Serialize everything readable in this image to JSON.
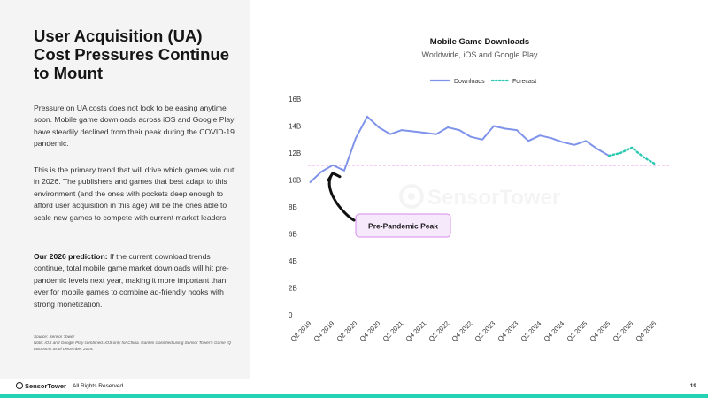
{
  "slide": {
    "title": "User Acquisition (UA) Cost Pressures Continue to Mount",
    "para1": "Pressure on UA costs does not look to be easing anytime soon. Mobile game downloads across iOS and Google Play have steadily declined from their peak during the COVID-19 pandemic.",
    "para2": "This is the primary trend that will drive which games win out in 2026. The publishers and games that best adapt to this environment (and the ones with pockets deep enough to afford user acquisition in this age) will be the ones able to scale new games to compete with current market leaders.",
    "para3_bold": "Our 2026 prediction:",
    "para3_rest": " If the current download trends continue, total mobile game market downloads will hit pre-pandemic levels next year, making it more important than ever for mobile games to combine ad-friendly hooks with strong monetization.",
    "source_line": "Source: Sensor Tower",
    "note_line": "Note: iOS and Google Play combined. iOS only for China. Games classified using Sensor Tower's Game IQ taxonomy as of December 2025."
  },
  "footer": {
    "logo": "SensorTower",
    "rights": "All Rights Reserved",
    "page_number": "19"
  },
  "colors": {
    "downloads": "#7f93ea",
    "forecast": "#2cc8b2",
    "reference": "#d040d0",
    "callout_fill": "#f7e9fc",
    "callout_border": "#d58be8",
    "accent_bar": "#24d3b4"
  },
  "chart_data": {
    "type": "line",
    "title": "Mobile Game Downloads",
    "subtitle": "Worldwide, iOS and Google Play",
    "ylim": [
      0,
      16
    ],
    "yticks": [
      0,
      2,
      4,
      6,
      8,
      10,
      12,
      14,
      16
    ],
    "ytick_labels": [
      "0",
      "2B",
      "4B",
      "6B",
      "8B",
      "10B",
      "12B",
      "14B",
      "16B"
    ],
    "xtick_labels": [
      "Q2 2019",
      "Q4 2019",
      "Q2 2020",
      "Q4 2020",
      "Q2 2021",
      "Q4 2021",
      "Q2 2022",
      "Q4 2022",
      "Q2 2023",
      "Q4 2023",
      "Q2 2024",
      "Q4 2024",
      "Q2 2025",
      "Q4 2025",
      "Q2 2026",
      "Q4 2026"
    ],
    "categories": [
      "Q2 2019",
      "Q3 2019",
      "Q4 2019",
      "Q1 2020",
      "Q2 2020",
      "Q3 2020",
      "Q4 2020",
      "Q1 2021",
      "Q2 2021",
      "Q3 2021",
      "Q4 2021",
      "Q1 2022",
      "Q2 2022",
      "Q3 2022",
      "Q4 2022",
      "Q1 2023",
      "Q2 2023",
      "Q3 2023",
      "Q4 2023",
      "Q1 2024",
      "Q2 2024",
      "Q3 2024",
      "Q4 2024",
      "Q1 2025",
      "Q2 2025",
      "Q3 2025",
      "Q4 2025",
      "Q1 2026",
      "Q2 2026",
      "Q3 2026",
      "Q4 2026"
    ],
    "grid": false,
    "legend_position": "top-center",
    "series": [
      {
        "name": "Downloads",
        "style": "solid",
        "values": [
          9.8,
          10.6,
          11.1,
          10.7,
          13.1,
          14.7,
          13.9,
          13.4,
          13.7,
          13.6,
          13.5,
          13.4,
          13.9,
          13.7,
          13.2,
          13.0,
          14.0,
          13.8,
          13.7,
          12.9,
          13.3,
          13.1,
          12.8,
          12.6,
          12.9,
          12.3,
          11.8,
          null,
          null,
          null,
          null
        ]
      },
      {
        "name": "Forecast",
        "style": "dotted",
        "values": [
          null,
          null,
          null,
          null,
          null,
          null,
          null,
          null,
          null,
          null,
          null,
          null,
          null,
          null,
          null,
          null,
          null,
          null,
          null,
          null,
          null,
          null,
          null,
          null,
          null,
          null,
          11.8,
          12.0,
          12.4,
          11.7,
          11.2
        ]
      }
    ],
    "reference_line": {
      "value": 11.1,
      "style": "dashed"
    },
    "callout": {
      "label": "Pre-Pandemic Peak",
      "points_to": "Q4 2019"
    },
    "watermark": "SensorTower"
  }
}
